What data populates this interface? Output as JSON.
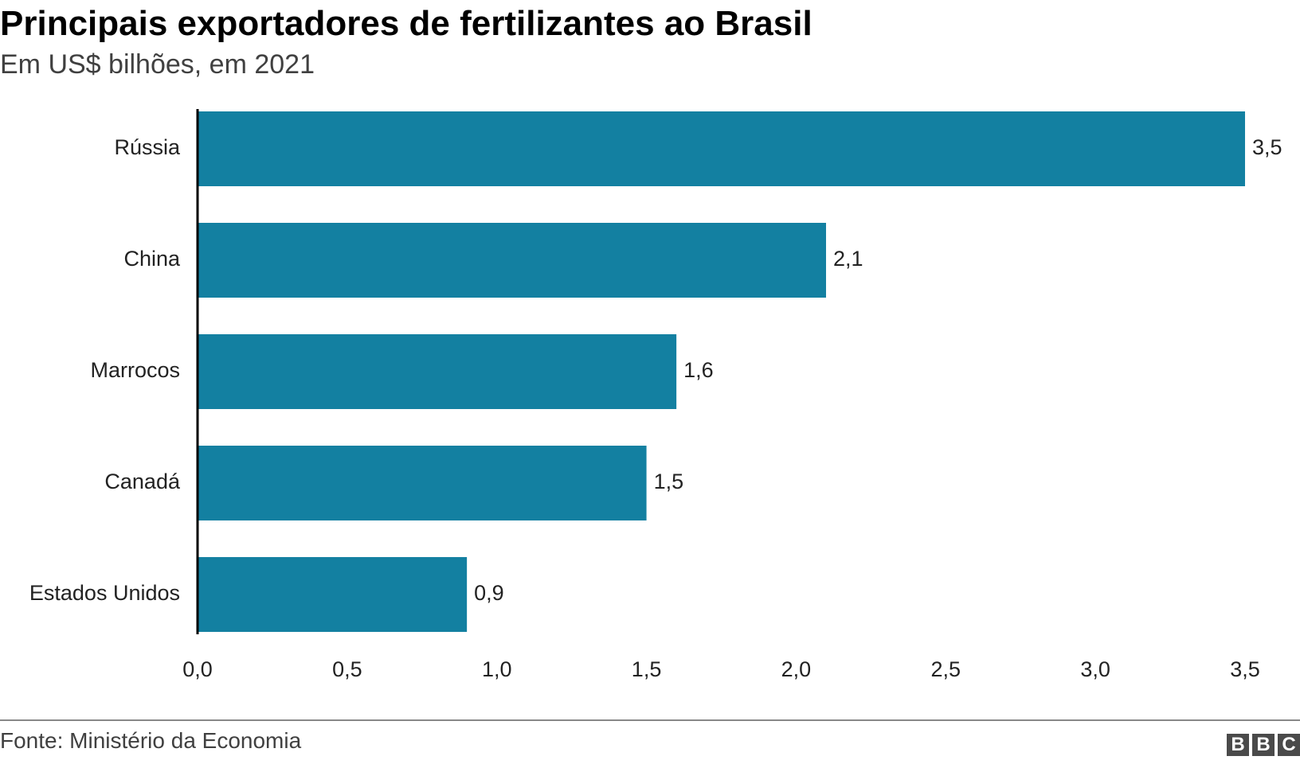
{
  "chart_data": {
    "type": "bar",
    "orientation": "horizontal",
    "title": "Principais exportadores de fertilizantes ao Brasil",
    "subtitle": "Em US$ bilhões, em 2021",
    "categories": [
      "Rússia",
      "China",
      "Marrocos",
      "Canadá",
      "Estados Unidos"
    ],
    "values": [
      3.5,
      2.1,
      1.6,
      1.5,
      0.9
    ],
    "value_labels": [
      "3,5",
      "2,1",
      "1,6",
      "1,5",
      "0,9"
    ],
    "xlim": [
      0,
      3.5
    ],
    "x_ticks": [
      0,
      0.5,
      1.0,
      1.5,
      2.0,
      2.5,
      3.0,
      3.5
    ],
    "x_tick_labels": [
      "0,0",
      "0,5",
      "1,0",
      "1,5",
      "2,0",
      "2,5",
      "3,0",
      "3,5"
    ],
    "grid": false,
    "legend": "none",
    "bar_color": "#1380a1",
    "xlabel": "",
    "ylabel": ""
  },
  "footer": {
    "source": "Fonte: Ministério da Economia",
    "logo_letters": [
      "B",
      "B",
      "C"
    ]
  }
}
